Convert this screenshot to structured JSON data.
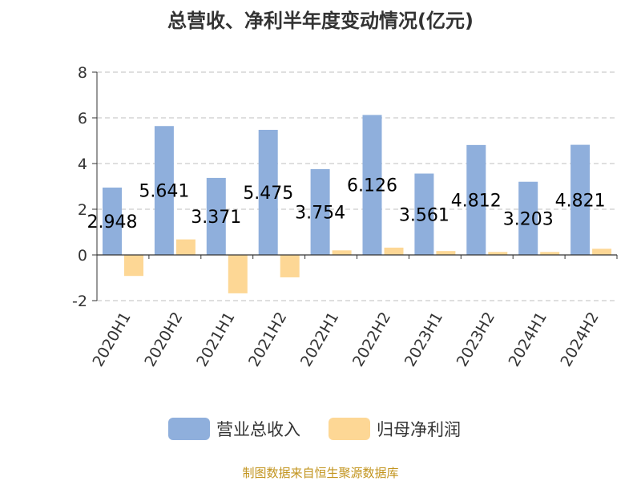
{
  "chart_data": {
    "type": "bar",
    "title": "总营收、净利半年度变动情况(亿元)",
    "categories": [
      "2020H1",
      "2020H2",
      "2021H1",
      "2021H2",
      "2022H1",
      "2022H2",
      "2023H1",
      "2023H2",
      "2024H1",
      "2024H2"
    ],
    "series": [
      {
        "name": "营业总收入",
        "color": "#8fafdc",
        "values": [
          2.948,
          5.641,
          3.371,
          5.475,
          3.754,
          6.126,
          3.561,
          4.812,
          3.203,
          4.821
        ],
        "labels": [
          "2.948",
          "5.641",
          "3.371",
          "5.475",
          "3.754",
          "6.126",
          "3.561",
          "4.812",
          "3.203",
          "4.821"
        ]
      },
      {
        "name": "归母净利润",
        "color": "#fdd795",
        "values": [
          -0.92,
          0.68,
          -1.68,
          -0.98,
          0.2,
          0.32,
          0.17,
          0.13,
          0.13,
          0.27
        ]
      }
    ],
    "ylim": [
      -2,
      8
    ],
    "yticks": [
      "-2",
      "0",
      "2",
      "4",
      "6",
      "8"
    ],
    "grid": true,
    "legend_position": "bottom",
    "source": "制图数据来自恒生聚源数据库"
  }
}
